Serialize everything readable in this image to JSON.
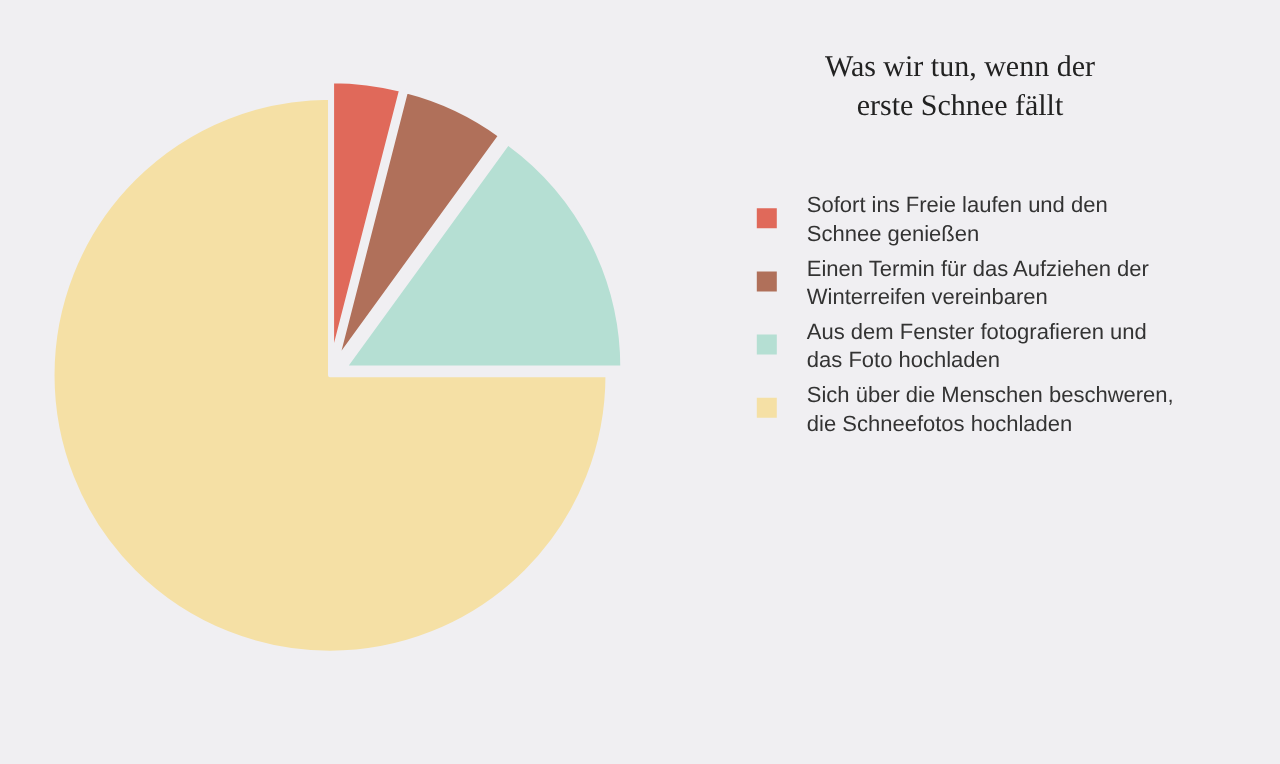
{
  "chart_data": {
    "type": "pie",
    "title": "Was wir tun, wenn der erste Schnee fällt",
    "categories": [
      "Sofort ins Freie laufen und den Schnee genießen",
      "Einen Termin für das Aufziehen der Winterreifen vereinbaren",
      "Aus dem Fenster fotografieren und das Foto hochladen",
      "Sich über die Menschen beschweren, die Schneefotos hochladen"
    ],
    "values": [
      4,
      6,
      15,
      75
    ],
    "colors": [
      "#e0695a",
      "#b0705a",
      "#b5dfd3",
      "#f5e0a5"
    ],
    "legend": "right"
  }
}
